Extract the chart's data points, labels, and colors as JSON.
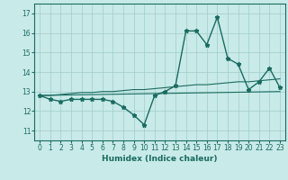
{
  "title": "",
  "xlabel": "Humidex (Indice chaleur)",
  "bg_color": "#c8eae8",
  "grid_color": "#a0ccc8",
  "line_color": "#1a6b60",
  "xlim": [
    -0.5,
    23.5
  ],
  "ylim": [
    10.5,
    17.5
  ],
  "yticks": [
    11,
    12,
    13,
    14,
    15,
    16,
    17
  ],
  "xticks": [
    0,
    1,
    2,
    3,
    4,
    5,
    6,
    7,
    8,
    9,
    10,
    11,
    12,
    13,
    14,
    15,
    16,
    17,
    18,
    19,
    20,
    21,
    22,
    23
  ],
  "line1_x": [
    0,
    1,
    2,
    3,
    4,
    5,
    6,
    7,
    8,
    9,
    10,
    11,
    12,
    13,
    14,
    15,
    16,
    17,
    18,
    19,
    20,
    21,
    22,
    23
  ],
  "line1_y": [
    12.8,
    12.6,
    12.5,
    12.6,
    12.6,
    12.6,
    12.6,
    12.5,
    12.2,
    11.8,
    11.3,
    12.8,
    13.0,
    13.3,
    16.1,
    16.1,
    15.4,
    16.8,
    14.7,
    14.4,
    13.1,
    13.5,
    14.2,
    13.2
  ],
  "line2_x": [
    0,
    1,
    2,
    3,
    4,
    5,
    6,
    7,
    8,
    9,
    10,
    11,
    12,
    13,
    14,
    15,
    16,
    17,
    18,
    19,
    20,
    21,
    22,
    23
  ],
  "line2_y": [
    12.8,
    12.8,
    12.85,
    12.9,
    12.95,
    12.95,
    13.0,
    13.0,
    13.05,
    13.1,
    13.1,
    13.15,
    13.2,
    13.25,
    13.3,
    13.35,
    13.35,
    13.4,
    13.45,
    13.5,
    13.5,
    13.55,
    13.6,
    13.65
  ],
  "line3_x": [
    0,
    23
  ],
  "line3_y": [
    12.8,
    13.0
  ]
}
